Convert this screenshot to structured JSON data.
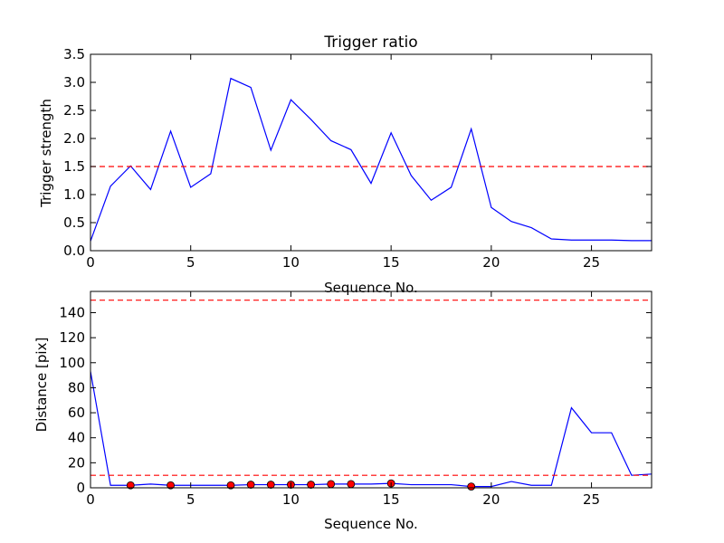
{
  "chart_data": [
    {
      "type": "line",
      "title": "Trigger ratio",
      "xlabel": "Sequence No.",
      "ylabel": "Trigger strength",
      "xlim": [
        0,
        28
      ],
      "ylim": [
        0,
        3.5
      ],
      "xticks": [
        0,
        5,
        10,
        15,
        20,
        25
      ],
      "yticks": [
        0.0,
        0.5,
        1.0,
        1.5,
        2.0,
        2.5,
        3.0,
        3.5
      ],
      "ytick_labels": [
        "0.0",
        "0.5",
        "1.0",
        "1.5",
        "2.0",
        "2.5",
        "3.0",
        "3.5"
      ],
      "grid": false,
      "series": [
        {
          "color": "#0000ff",
          "style": "solid",
          "x": [
            0,
            1,
            2,
            3,
            4,
            5,
            6,
            7,
            8,
            9,
            10,
            11,
            12,
            13,
            14,
            15,
            16,
            17,
            18,
            19,
            20,
            21,
            22,
            23,
            24,
            25,
            26,
            27,
            28
          ],
          "y": [
            0.17,
            1.15,
            1.51,
            1.09,
            2.13,
            1.13,
            1.37,
            3.07,
            2.91,
            1.79,
            2.69,
            2.34,
            1.96,
            1.8,
            1.2,
            2.1,
            1.34,
            0.9,
            1.13,
            2.17,
            0.77,
            0.52,
            0.41,
            0.21,
            0.19,
            0.19,
            0.19,
            0.18,
            0.18
          ]
        }
      ],
      "hlines": [
        {
          "y": 1.5,
          "color": "#ff0000",
          "style": "dashed"
        }
      ]
    },
    {
      "type": "line",
      "title": "",
      "xlabel": "Sequence No.",
      "ylabel": "Distance [pix]",
      "xlim": [
        0,
        28
      ],
      "ylim": [
        0,
        157
      ],
      "xticks": [
        0,
        5,
        10,
        15,
        20,
        25
      ],
      "yticks": [
        0,
        20,
        40,
        60,
        80,
        100,
        120,
        140
      ],
      "ytick_labels": [
        "0",
        "20",
        "40",
        "60",
        "80",
        "100",
        "120",
        "140"
      ],
      "grid": false,
      "series": [
        {
          "color": "#0000ff",
          "style": "solid",
          "x": [
            0,
            1,
            2,
            3,
            4,
            5,
            6,
            7,
            8,
            9,
            10,
            11,
            12,
            13,
            14,
            15,
            16,
            17,
            18,
            19,
            20,
            21,
            22,
            23,
            24,
            25,
            26,
            27,
            28
          ],
          "y": [
            93,
            2,
            2,
            3,
            2,
            2,
            2,
            2,
            2.5,
            2.5,
            2.5,
            2.5,
            3,
            3,
            3,
            3.5,
            2.5,
            2.5,
            2.5,
            1,
            1,
            5,
            2,
            2,
            64,
            44,
            44,
            10,
            11
          ]
        }
      ],
      "markers": {
        "color": "#ff0000",
        "edge": "#000000",
        "x": [
          2,
          4,
          7,
          8,
          9,
          10,
          11,
          12,
          13,
          15,
          19
        ],
        "y": [
          2,
          2,
          2,
          2.5,
          2.5,
          2.5,
          2.5,
          3,
          3,
          3.5,
          1
        ]
      },
      "hlines": [
        {
          "y": 10,
          "color": "#ff0000",
          "style": "dashed"
        },
        {
          "y": 150,
          "color": "#ff0000",
          "style": "dashed"
        }
      ]
    }
  ]
}
